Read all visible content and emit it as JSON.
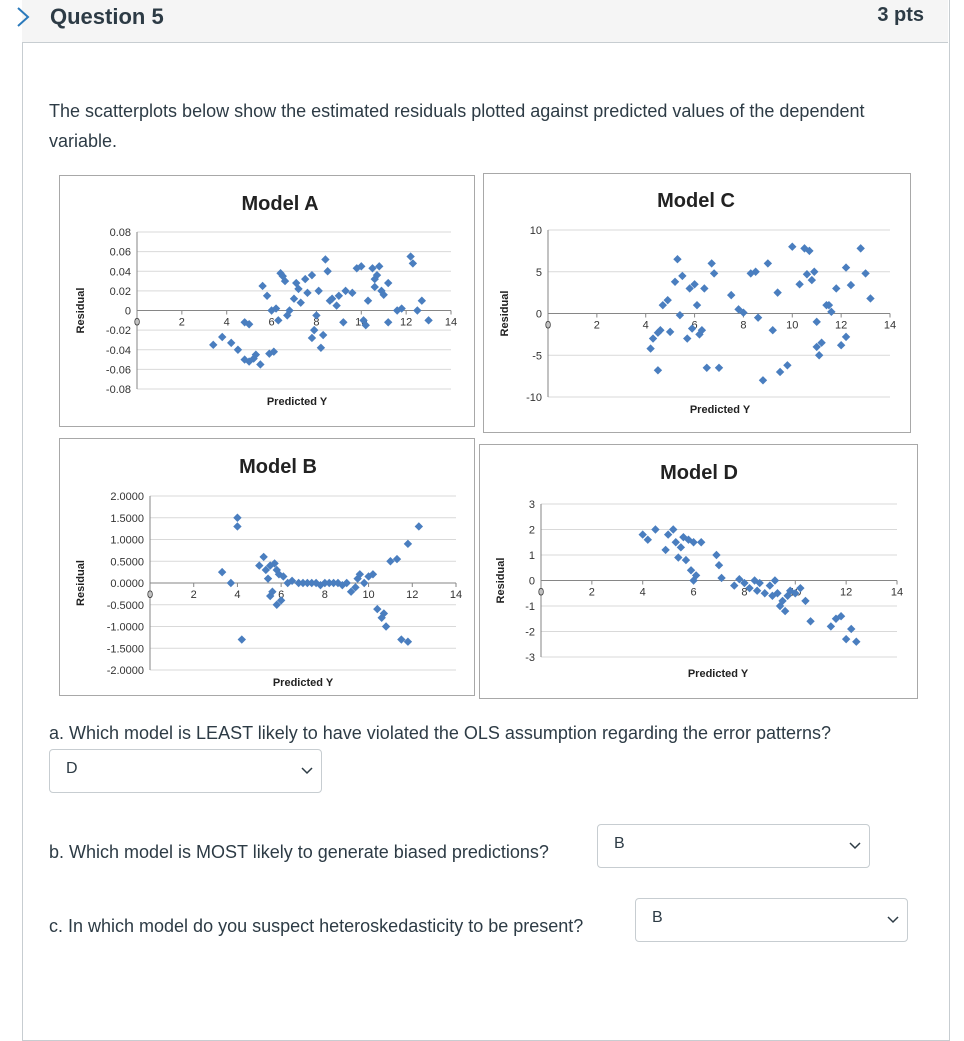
{
  "question": {
    "title": "Question 5",
    "points": "3 pts"
  },
  "intro": "The scatterplots below show the estimated residuals plotted against predicted values of the dependent variable.",
  "colors": {
    "marker": "#4a7ebf",
    "grid": "#d9d9d9",
    "axis": "#868686"
  },
  "chart_data": [
    {
      "type": "scatter",
      "title": "Model A",
      "xlabel": "Predicted Y",
      "ylabel": "Residual",
      "xlim": [
        0,
        14
      ],
      "ylim": [
        -0.08,
        0.08
      ],
      "xticks": [
        0,
        2,
        4,
        6,
        8,
        10,
        12,
        14
      ],
      "yticks": [
        0.08,
        0.06,
        0.04,
        0.02,
        0,
        -0.02,
        -0.04,
        -0.06,
        -0.08
      ],
      "ytick_labels": [
        "0.08",
        "0.06",
        "0.04",
        "0.02",
        "0",
        "-0.02",
        "-0.04",
        "-0.06",
        "-0.08"
      ],
      "points": [
        [
          3.4,
          -0.035
        ],
        [
          3.8,
          -0.027
        ],
        [
          4.2,
          -0.033
        ],
        [
          4.5,
          -0.04
        ],
        [
          4.8,
          -0.05
        ],
        [
          5.0,
          -0.052
        ],
        [
          5.2,
          -0.049
        ],
        [
          5.5,
          -0.055
        ],
        [
          5.3,
          -0.045
        ],
        [
          5.0,
          -0.014
        ],
        [
          4.8,
          -0.012
        ],
        [
          5.6,
          0.025
        ],
        [
          5.8,
          0.015
        ],
        [
          6.0,
          0.0
        ],
        [
          6.2,
          0.002
        ],
        [
          6.3,
          -0.01
        ],
        [
          6.4,
          0.038
        ],
        [
          6.5,
          0.035
        ],
        [
          6.6,
          0.03
        ],
        [
          6.8,
          0.0
        ],
        [
          6.7,
          -0.005
        ],
        [
          7.0,
          0.012
        ],
        [
          7.1,
          0.028
        ],
        [
          7.2,
          0.022
        ],
        [
          7.3,
          0.008
        ],
        [
          7.5,
          0.032
        ],
        [
          7.6,
          0.018
        ],
        [
          7.8,
          0.036
        ],
        [
          7.9,
          -0.02
        ],
        [
          8.0,
          -0.005
        ],
        [
          8.1,
          0.02
        ],
        [
          8.2,
          -0.038
        ],
        [
          8.3,
          -0.025
        ],
        [
          8.4,
          0.052
        ],
        [
          8.5,
          0.04
        ],
        [
          8.6,
          0.01
        ],
        [
          8.7,
          0.012
        ],
        [
          8.9,
          0.005
        ],
        [
          9.0,
          0.015
        ],
        [
          9.2,
          -0.012
        ],
        [
          9.3,
          0.02
        ],
        [
          9.6,
          0.018
        ],
        [
          9.8,
          0.043
        ],
        [
          10.0,
          0.045
        ],
        [
          10.1,
          -0.01
        ],
        [
          10.2,
          -0.015
        ],
        [
          10.3,
          0.01
        ],
        [
          10.5,
          0.043
        ],
        [
          10.6,
          0.032
        ],
        [
          10.7,
          0.036
        ],
        [
          10.8,
          0.045
        ],
        [
          10.6,
          0.024
        ],
        [
          10.9,
          0.02
        ],
        [
          11.0,
          0.016
        ],
        [
          11.2,
          0.028
        ],
        [
          11.2,
          -0.012
        ],
        [
          11.6,
          0.0
        ],
        [
          11.8,
          0.002
        ],
        [
          12.2,
          0.055
        ],
        [
          12.3,
          0.048
        ],
        [
          12.5,
          0.0
        ],
        [
          12.7,
          0.01
        ],
        [
          13.0,
          -0.01
        ],
        [
          6.1,
          -0.042
        ],
        [
          5.9,
          -0.044
        ],
        [
          7.8,
          -0.028
        ]
      ]
    },
    {
      "type": "scatter",
      "title": "Model C",
      "xlabel": "Predicted Y",
      "ylabel": "Residual",
      "xlim": [
        0,
        14
      ],
      "ylim": [
        -10,
        10
      ],
      "xticks": [
        0,
        2,
        4,
        6,
        8,
        10,
        12,
        14
      ],
      "yticks": [
        10,
        5,
        0,
        -5,
        -10
      ],
      "ytick_labels": [
        "10",
        "5",
        "0",
        "-5",
        "-10"
      ],
      "points": [
        [
          4.2,
          -4.2
        ],
        [
          4.3,
          -3.0
        ],
        [
          4.5,
          -2.3
        ],
        [
          4.6,
          -2.0
        ],
        [
          4.5,
          -6.8
        ],
        [
          4.7,
          1.0
        ],
        [
          4.9,
          1.6
        ],
        [
          5.0,
          -2.2
        ],
        [
          5.2,
          3.8
        ],
        [
          5.3,
          6.5
        ],
        [
          5.4,
          -0.2
        ],
        [
          5.5,
          4.5
        ],
        [
          5.7,
          -3.0
        ],
        [
          5.8,
          3.0
        ],
        [
          5.9,
          -1.8
        ],
        [
          6.0,
          3.5
        ],
        [
          6.1,
          1.0
        ],
        [
          6.2,
          -2.5
        ],
        [
          6.3,
          -2.0
        ],
        [
          6.4,
          3.0
        ],
        [
          6.5,
          -6.5
        ],
        [
          6.7,
          6.0
        ],
        [
          6.8,
          4.8
        ],
        [
          7.0,
          -6.5
        ],
        [
          7.5,
          2.2
        ],
        [
          7.8,
          0.5
        ],
        [
          8.0,
          0.1
        ],
        [
          8.3,
          4.8
        ],
        [
          8.5,
          5.0
        ],
        [
          8.6,
          -0.5
        ],
        [
          8.8,
          -8.0
        ],
        [
          9.0,
          6.0
        ],
        [
          9.2,
          -2.0
        ],
        [
          9.4,
          2.5
        ],
        [
          9.5,
          -7.0
        ],
        [
          9.8,
          -6.2
        ],
        [
          10.0,
          8.0
        ],
        [
          10.3,
          3.5
        ],
        [
          10.5,
          7.8
        ],
        [
          10.6,
          4.7
        ],
        [
          10.7,
          7.5
        ],
        [
          10.8,
          4.0
        ],
        [
          10.9,
          5.0
        ],
        [
          11.0,
          -1.0
        ],
        [
          11.0,
          -4.0
        ],
        [
          11.1,
          -5.0
        ],
        [
          11.2,
          -3.5
        ],
        [
          11.4,
          1.0
        ],
        [
          11.5,
          1.0
        ],
        [
          11.6,
          0.2
        ],
        [
          11.8,
          3.0
        ],
        [
          12.0,
          -3.8
        ],
        [
          12.2,
          5.5
        ],
        [
          12.4,
          3.4
        ],
        [
          12.8,
          7.8
        ],
        [
          13.0,
          4.8
        ],
        [
          13.2,
          1.8
        ],
        [
          12.2,
          -2.8
        ]
      ]
    },
    {
      "type": "scatter",
      "title": "Model B",
      "xlabel": "Predicted Y",
      "ylabel": "Residual",
      "xlim": [
        0,
        14
      ],
      "ylim": [
        -2,
        2
      ],
      "xticks": [
        0,
        2,
        4,
        6,
        8,
        10,
        12,
        14
      ],
      "yticks": [
        2,
        1.5,
        1,
        0.5,
        0,
        -0.5,
        -1,
        -1.5,
        -2
      ],
      "ytick_labels": [
        "2.0000",
        "1.5000",
        "1.0000",
        "0.5000",
        "0.0000",
        "-0.5000",
        "-1.0000",
        "-1.5000",
        "-2.0000"
      ],
      "points": [
        [
          3.3,
          0.25
        ],
        [
          3.7,
          0.0
        ],
        [
          4.0,
          1.5
        ],
        [
          4.0,
          1.3
        ],
        [
          4.2,
          -1.3
        ],
        [
          5.0,
          0.4
        ],
        [
          5.2,
          0.6
        ],
        [
          5.3,
          0.3
        ],
        [
          5.4,
          0.1
        ],
        [
          5.5,
          0.4
        ],
        [
          5.6,
          -0.2
        ],
        [
          5.7,
          0.45
        ],
        [
          5.8,
          0.3
        ],
        [
          5.9,
          0.2
        ],
        [
          6.0,
          -0.4
        ],
        [
          6.1,
          0.15
        ],
        [
          6.3,
          0.0
        ],
        [
          6.5,
          0.05
        ],
        [
          6.8,
          0.0
        ],
        [
          7.0,
          0.0
        ],
        [
          7.2,
          0.0
        ],
        [
          7.4,
          0.0
        ],
        [
          7.6,
          0.0
        ],
        [
          7.8,
          -0.05
        ],
        [
          8.0,
          0.0
        ],
        [
          8.2,
          0.0
        ],
        [
          8.4,
          0.0
        ],
        [
          8.6,
          0.0
        ],
        [
          8.8,
          -0.05
        ],
        [
          9.0,
          0.0
        ],
        [
          9.2,
          -0.2
        ],
        [
          9.4,
          -0.1
        ],
        [
          9.5,
          0.1
        ],
        [
          9.6,
          0.2
        ],
        [
          9.8,
          0.0
        ],
        [
          10.0,
          0.15
        ],
        [
          10.2,
          0.2
        ],
        [
          10.4,
          -0.6
        ],
        [
          10.6,
          -0.8
        ],
        [
          10.7,
          -0.7
        ],
        [
          10.8,
          -1.0
        ],
        [
          11.0,
          0.5
        ],
        [
          11.3,
          0.55
        ],
        [
          11.5,
          -1.3
        ],
        [
          11.8,
          -1.35
        ],
        [
          11.8,
          0.9
        ],
        [
          12.3,
          1.3
        ],
        [
          5.5,
          -0.3
        ],
        [
          5.8,
          -0.5
        ]
      ]
    },
    {
      "type": "scatter",
      "title": "Model D",
      "xlabel": "Predicted Y",
      "ylabel": "Residual",
      "xlim": [
        0,
        14
      ],
      "ylim": [
        -3,
        3
      ],
      "xticks": [
        0,
        2,
        4,
        6,
        8,
        10,
        12,
        14
      ],
      "yticks": [
        3,
        2,
        1,
        0,
        -1,
        -2,
        -3
      ],
      "ytick_labels": [
        "3",
        "2",
        "1",
        "0",
        "-1",
        "-2",
        "-3"
      ],
      "points": [
        [
          4.0,
          1.8
        ],
        [
          4.2,
          1.6
        ],
        [
          4.5,
          2.0
        ],
        [
          4.9,
          1.2
        ],
        [
          5.0,
          1.8
        ],
        [
          5.2,
          2.0
        ],
        [
          5.3,
          1.5
        ],
        [
          5.4,
          0.9
        ],
        [
          5.5,
          1.3
        ],
        [
          5.6,
          1.7
        ],
        [
          5.8,
          1.6
        ],
        [
          6.0,
          1.5
        ],
        [
          5.7,
          0.8
        ],
        [
          5.9,
          0.4
        ],
        [
          6.0,
          0.0
        ],
        [
          6.1,
          0.2
        ],
        [
          6.3,
          1.5
        ],
        [
          6.9,
          1.0
        ],
        [
          7.0,
          0.6
        ],
        [
          7.1,
          0.1
        ],
        [
          7.6,
          -0.2
        ],
        [
          8.0,
          -0.1
        ],
        [
          8.2,
          -0.3
        ],
        [
          8.4,
          0.0
        ],
        [
          8.5,
          -0.4
        ],
        [
          8.6,
          -0.1
        ],
        [
          8.8,
          -0.5
        ],
        [
          9.0,
          -0.2
        ],
        [
          9.1,
          -0.6
        ],
        [
          9.3,
          -0.5
        ],
        [
          9.4,
          -1.0
        ],
        [
          9.5,
          -0.8
        ],
        [
          9.6,
          -1.2
        ],
        [
          9.7,
          -0.6
        ],
        [
          9.8,
          -0.4
        ],
        [
          10.0,
          -0.5
        ],
        [
          10.2,
          -0.3
        ],
        [
          10.4,
          -0.8
        ],
        [
          10.6,
          -1.6
        ],
        [
          11.4,
          -1.8
        ],
        [
          11.6,
          -1.5
        ],
        [
          11.8,
          -1.4
        ],
        [
          12.0,
          -2.3
        ],
        [
          12.4,
          -2.4
        ],
        [
          12.2,
          -1.9
        ],
        [
          7.8,
          0.05
        ],
        [
          9.2,
          0.0
        ]
      ]
    }
  ],
  "questions": [
    {
      "text": "a. Which model is LEAST likely to have violated the OLS assumption regarding the error patterns?",
      "answer": "D"
    },
    {
      "text": "b. Which model is MOST likely to generate biased predictions?",
      "answer": "B"
    },
    {
      "text": "c. In which model do you suspect heteroskedasticity to be present?",
      "answer": "B"
    }
  ]
}
